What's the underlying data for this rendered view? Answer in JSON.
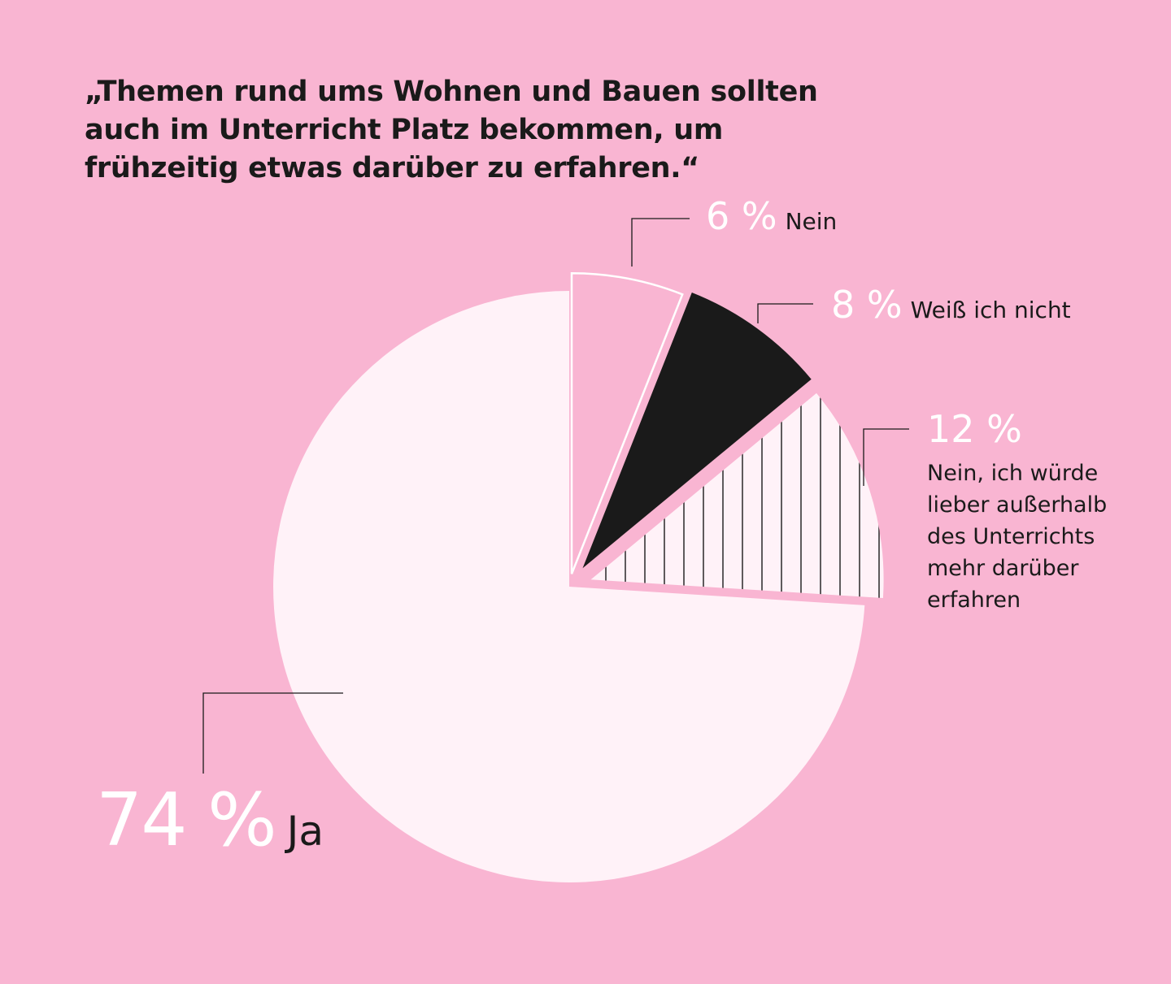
{
  "chart_data": {
    "type": "pie",
    "title": "„Themen rund ums Wohnen und Bauen sollten auch im Unterricht Platz bekommen, um frühzeitig etwas darüber zu erfahren.“",
    "slices": [
      {
        "label": "Ja",
        "value": 74,
        "value_label": "74 %",
        "fill": "#FFF2F8",
        "style": "solid",
        "exploded": false
      },
      {
        "label": "Nein",
        "value": 6,
        "value_label": "6 %",
        "fill": "none",
        "style": "outline",
        "exploded": true
      },
      {
        "label": "Weiß ich nicht",
        "value": 8,
        "value_label": "8 %",
        "fill": "#1A1A1A",
        "style": "solid",
        "exploded": true
      },
      {
        "label": "Nein, ich würde lieber außerhalb des Unterrichts mehr darüber erfahren",
        "value": 12,
        "value_label": "12 %",
        "fill": "#FFF2F8",
        "style": "striped",
        "exploded": true
      }
    ],
    "legend": "none",
    "grid": false
  },
  "colors": {
    "background": "#F9B5D2",
    "slice_light": "#FFF2F8",
    "slice_dark": "#1A1A1A",
    "value_text": "#FFFFFF",
    "category_text": "#1A1A1A"
  }
}
